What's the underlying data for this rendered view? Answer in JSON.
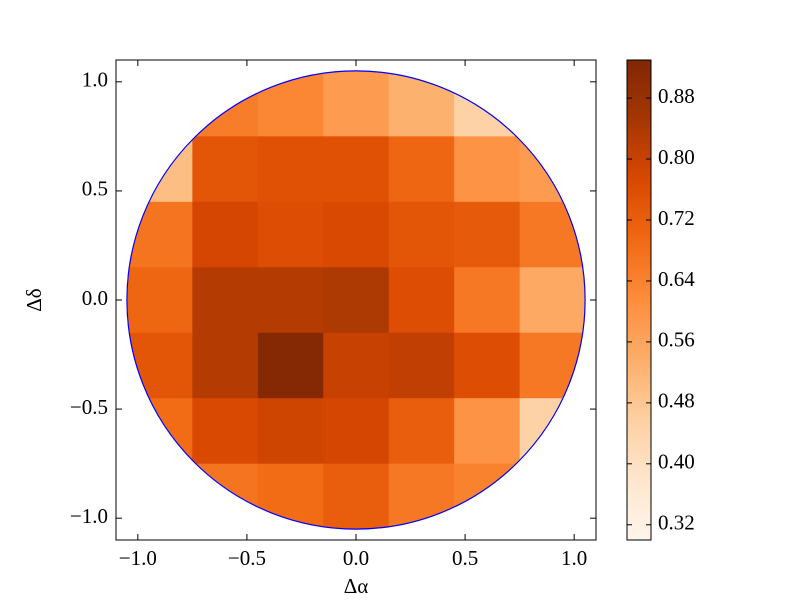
{
  "chart_data": {
    "type": "heatmap",
    "x_label": "Δα",
    "y_label": "Δδ",
    "xlim": [
      -1.1,
      1.1
    ],
    "ylim": [
      -1.1,
      1.1
    ],
    "xticks": [
      {
        "value": -1.0,
        "label": "−1.0"
      },
      {
        "value": -0.5,
        "label": "−0.5"
      },
      {
        "value": 0.0,
        "label": "0.0"
      },
      {
        "value": 0.5,
        "label": "0.5"
      },
      {
        "value": 1.0,
        "label": "1.0"
      }
    ],
    "yticks": [
      {
        "value": -1.0,
        "label": "−1.0"
      },
      {
        "value": -0.5,
        "label": "−0.5"
      },
      {
        "value": 0.0,
        "label": "0.0"
      },
      {
        "value": 0.5,
        "label": "0.5"
      },
      {
        "value": 1.0,
        "label": "1.0"
      }
    ],
    "x_edges": [
      -1.05,
      -0.75,
      -0.45,
      -0.15,
      0.15,
      0.45,
      0.75,
      1.05
    ],
    "y_edges": [
      1.05,
      0.75,
      0.45,
      0.15,
      -0.15,
      -0.45,
      -0.75,
      -1.05
    ],
    "z": [
      [
        null,
        0.65,
        0.63,
        0.58,
        0.53,
        0.45,
        null
      ],
      [
        0.5,
        0.74,
        0.75,
        0.75,
        0.7,
        0.6,
        0.58
      ],
      [
        0.67,
        0.78,
        0.76,
        0.77,
        0.74,
        0.73,
        0.66
      ],
      [
        0.7,
        0.83,
        0.83,
        0.84,
        0.76,
        0.66,
        0.55
      ],
      [
        0.74,
        0.83,
        0.92,
        0.8,
        0.81,
        0.76,
        0.66
      ],
      [
        0.69,
        0.77,
        0.79,
        0.78,
        0.72,
        0.6,
        0.45
      ],
      [
        null,
        0.67,
        0.69,
        0.72,
        0.66,
        0.64,
        null
      ]
    ],
    "aperture": {
      "radius": 1.05,
      "color": "#0000ff"
    },
    "colormap": [
      "#fff5eb",
      "#fee6ce",
      "#fdd0a2",
      "#fdae6b",
      "#fd8d3c",
      "#f16913",
      "#d94801",
      "#a63603",
      "#7f2704"
    ],
    "clim": [
      0.3,
      0.93
    ],
    "cticks": [
      0.32,
      {
        "value": 0.4,
        "label": "0.40"
      },
      0.48,
      0.56,
      0.64,
      0.72,
      {
        "value": 0.8,
        "label": "0.80"
      },
      0.88
    ]
  }
}
